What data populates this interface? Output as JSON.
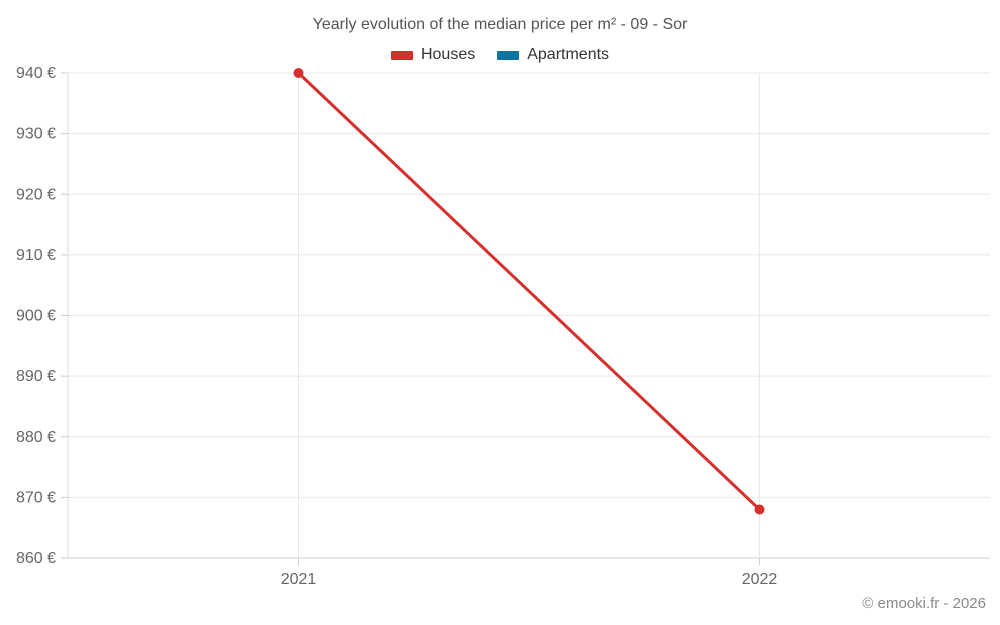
{
  "title": "Yearly evolution of the median price per m² - 09 - Sor",
  "legend": {
    "items": [
      {
        "label": "Houses"
      },
      {
        "label": "Apartments"
      }
    ]
  },
  "footer": "© emooki.fr - 2026",
  "colors": {
    "grid": "#e8e8e8",
    "axis_line": "#cccccc",
    "tick": "#cccccc",
    "axis_label": "#666666",
    "title_text": "#555555",
    "legend_text": "#333333",
    "footer_text": "#8a8a8a",
    "background": "#ffffff"
  },
  "chart_data": {
    "type": "line",
    "title": "Yearly evolution of the median price per m² - 09 - Sor",
    "categories": [
      "2021",
      "2022"
    ],
    "series": [
      {
        "name": "Houses",
        "color": "#d5302e",
        "values": [
          940,
          868
        ]
      },
      {
        "name": "Apartments",
        "color": "#0e72a3",
        "values": [
          null,
          null
        ]
      }
    ],
    "xlabel": "",
    "ylabel": "",
    "ylim": [
      860,
      940
    ],
    "ytick_step": 10,
    "value_suffix": " €",
    "grid": true,
    "legend_position": "top",
    "point_radius": 5,
    "line_width": 3
  }
}
